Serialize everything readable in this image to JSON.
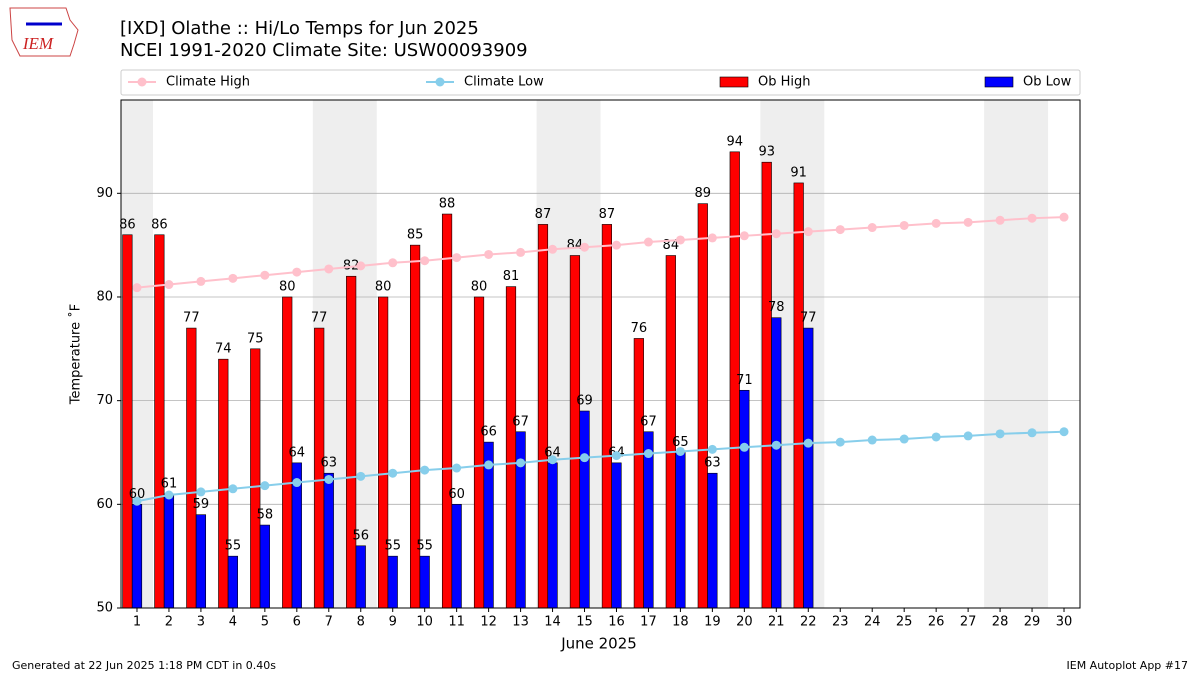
{
  "chart_data": {
    "type": "bar",
    "title": "[IXD] Olathe :: Hi/Lo Temps for Jun 2025",
    "subtitle": "NCEI 1991-2020 Climate Site: USW00093909",
    "x_label": "June 2025",
    "y_label": "Temperature ˚F",
    "x": [
      1,
      2,
      3,
      4,
      5,
      6,
      7,
      8,
      9,
      10,
      11,
      12,
      13,
      14,
      15,
      16,
      17,
      18,
      19,
      20,
      21,
      22,
      23,
      24,
      25,
      26,
      27,
      28,
      29,
      30
    ],
    "xlim": [
      0.5,
      30.5
    ],
    "xticks": [
      1,
      2,
      3,
      4,
      5,
      6,
      7,
      8,
      9,
      10,
      11,
      12,
      13,
      14,
      15,
      16,
      17,
      18,
      19,
      20,
      21,
      22,
      23,
      24,
      25,
      26,
      27,
      28,
      29,
      30
    ],
    "ylim": [
      50,
      99
    ],
    "yticks": [
      50,
      60,
      70,
      80,
      90
    ],
    "grid": true,
    "series": [
      {
        "name": "Climate High",
        "type": "line",
        "color": "#ffc0cb",
        "values": [
          80.9,
          81.2,
          81.5,
          81.8,
          82.1,
          82.4,
          82.7,
          83.0,
          83.3,
          83.5,
          83.8,
          84.1,
          84.3,
          84.6,
          84.8,
          85.0,
          85.3,
          85.5,
          85.7,
          85.9,
          86.1,
          86.3,
          86.5,
          86.7,
          86.9,
          87.1,
          87.2,
          87.4,
          87.6,
          87.7
        ]
      },
      {
        "name": "Climate Low",
        "type": "line",
        "color": "#87ceeb",
        "values": [
          60.3,
          60.9,
          61.2,
          61.5,
          61.8,
          62.1,
          62.4,
          62.7,
          63.0,
          63.3,
          63.5,
          63.8,
          64.0,
          64.3,
          64.5,
          64.7,
          64.9,
          65.1,
          65.3,
          65.5,
          65.7,
          65.9,
          66.0,
          66.2,
          66.3,
          66.5,
          66.6,
          66.8,
          66.9,
          67.0
        ]
      },
      {
        "name": "Ob High",
        "type": "bar",
        "color": "#ff0000",
        "values": [
          86,
          86,
          77,
          74,
          75,
          80,
          77,
          82,
          80,
          85,
          88,
          80,
          81,
          87,
          84,
          87,
          76,
          84,
          89,
          94,
          93,
          91,
          null,
          null,
          null,
          null,
          null,
          null,
          null,
          null
        ]
      },
      {
        "name": "Ob Low",
        "type": "bar",
        "color": "#0000ff",
        "values": [
          60,
          61,
          59,
          55,
          58,
          64,
          63,
          56,
          55,
          55,
          60,
          66,
          67,
          64,
          69,
          64,
          67,
          65,
          63,
          71,
          78,
          77,
          null,
          null,
          null,
          null,
          null,
          null,
          null,
          null
        ]
      }
    ],
    "logo_text": "IEM",
    "footer_left": "Generated at 22 Jun 2025 1:18 PM CDT in 0.40s",
    "footer_right": "IEM Autoplot App #17"
  }
}
